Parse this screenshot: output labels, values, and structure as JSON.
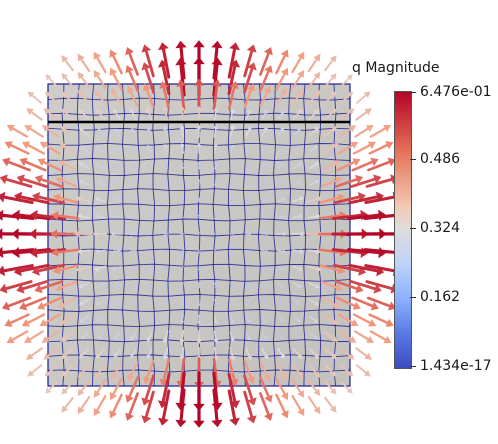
{
  "legend": {
    "title": "q Magnitude",
    "ticks": [
      "6.476e-01",
      "0.486",
      "0.324",
      "0.162",
      "1.434e-17"
    ],
    "max_value": 0.6476,
    "min_value": 1.434e-17,
    "colormap": "Cool to Warm",
    "colors": {
      "high": "#b40426",
      "mid": "#dddddd",
      "low": "#3b4cc0"
    }
  },
  "mesh": {
    "cells_per_side": 20,
    "edge_color": "#1c1c8c",
    "surface_color": "#c8c6c2"
  },
  "glyphs": {
    "type": "arrow",
    "field": "q",
    "direction": "outward-from-center"
  },
  "slice_line": {
    "color": "#000000"
  }
}
